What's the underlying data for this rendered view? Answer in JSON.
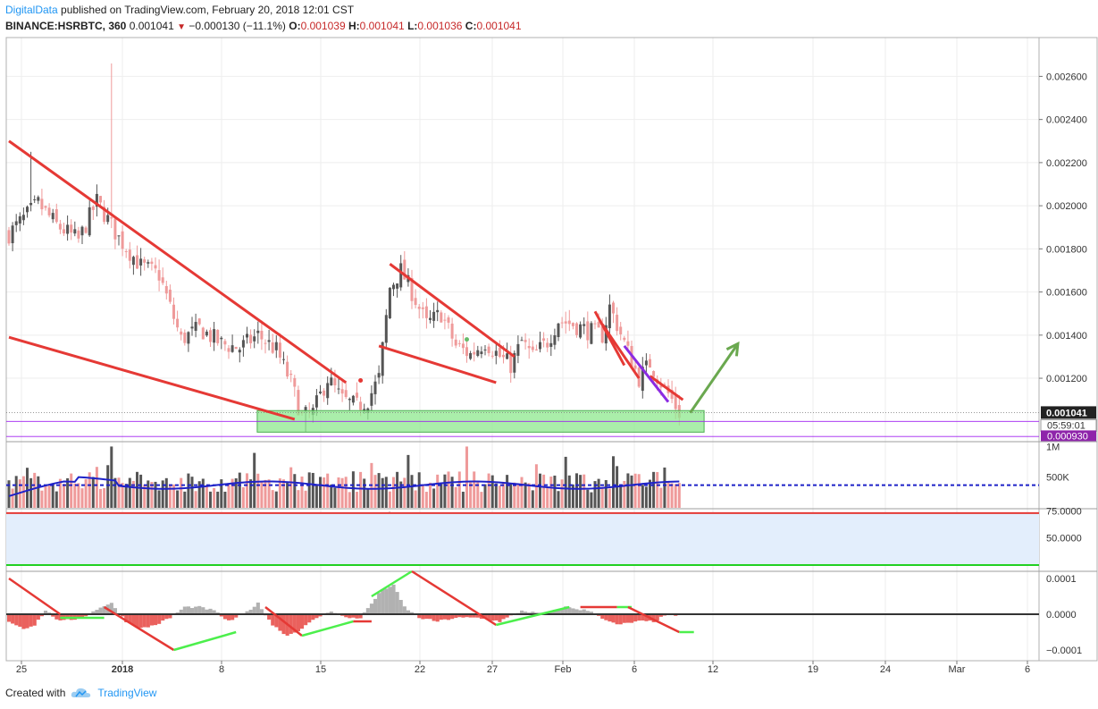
{
  "header": {
    "brand": "DigitalData",
    "published": "published on TradingView.com, February 20, 2018 12:01 CST",
    "symbol": "BINANCE:HSRBTC, 360",
    "last": "0.001041",
    "change": "−0.000130 (−11.1%)",
    "o_label": "O:",
    "o_value": "0.001039",
    "h_label": "H:",
    "h_value": "0.001041",
    "l_label": "L:",
    "l_value": "0.001036",
    "c_label": "C:",
    "c_value": "0.001041"
  },
  "footer": {
    "created_with": "Created with",
    "brand": "TradingView"
  },
  "colors": {
    "up": "#555555",
    "down": "#ef9a9a",
    "trend": "#e53935",
    "support_fill": "#8ee88e",
    "rsi": "#333333",
    "rsi_ma": "#9c27b0",
    "vol_ma": "#1e22c8",
    "arrow": "#6aa84f",
    "purple_line": "#8b2be2"
  },
  "chart_data": [
    {
      "type": "candlestick",
      "x_ticks": [
        "25",
        "2018",
        "8",
        "15",
        "22",
        "27",
        "Feb",
        "6",
        "12",
        "19",
        "24",
        "Mar",
        "6"
      ],
      "y_ticks": [
        "0.002600",
        "0.002400",
        "0.002200",
        "0.002000",
        "0.001800",
        "0.001600",
        "0.001400",
        "0.001200"
      ],
      "ylim": [
        0.00091,
        0.00278
      ],
      "last_price_label": "0.001041",
      "timer_label": "05:59:01",
      "low_label": "0.000930",
      "anchors": [
        [
          0,
          0.00187
        ],
        [
          8,
          0.00201
        ],
        [
          13,
          0.00191
        ],
        [
          19,
          0.00184
        ],
        [
          24,
          0.00202
        ],
        [
          30,
          0.00185
        ],
        [
          36,
          0.00172
        ],
        [
          41,
          0.00168
        ],
        [
          47,
          0.00138
        ],
        [
          52,
          0.00143
        ],
        [
          58,
          0.00136
        ],
        [
          63,
          0.00134
        ],
        [
          68,
          0.0014
        ],
        [
          73,
          0.00133
        ],
        [
          77,
          0.00118
        ],
        [
          80,
          0.00102
        ],
        [
          83,
          0.00104
        ],
        [
          87,
          0.0012
        ],
        [
          91,
          0.0011
        ],
        [
          95,
          0.00107
        ],
        [
          98,
          0.0011
        ],
        [
          101,
          0.0012
        ],
        [
          104,
          0.00162
        ],
        [
          107,
          0.0017
        ],
        [
          110,
          0.0016
        ],
        [
          114,
          0.00145
        ],
        [
          118,
          0.0015
        ],
        [
          122,
          0.00135
        ],
        [
          126,
          0.00131
        ],
        [
          130,
          0.00137
        ],
        [
          134,
          0.0013
        ],
        [
          137,
          0.00126
        ],
        [
          140,
          0.00137
        ],
        [
          143,
          0.0013
        ],
        [
          147,
          0.00137
        ],
        [
          150,
          0.00147
        ],
        [
          154,
          0.00145
        ],
        [
          158,
          0.00142
        ],
        [
          162,
          0.0014
        ],
        [
          164,
          0.00153
        ],
        [
          166,
          0.00145
        ],
        [
          169,
          0.00132
        ],
        [
          172,
          0.0012
        ],
        [
          175,
          0.00127
        ],
        [
          178,
          0.00118
        ],
        [
          181,
          0.0011
        ],
        [
          183,
          0.00104
        ]
      ],
      "trendlines": [
        {
          "from": [
            0,
            0.0023
          ],
          "to": [
            92,
            0.00118
          ]
        },
        {
          "from": [
            0,
            0.00139
          ],
          "to": [
            78,
            0.00101
          ]
        },
        {
          "from": [
            104,
            0.00173
          ],
          "to": [
            138,
            0.0013
          ]
        },
        {
          "from": [
            101,
            0.00135
          ],
          "to": [
            133,
            0.00118
          ]
        },
        {
          "from": [
            160,
            0.00151
          ],
          "to": [
            168,
            0.00126
          ]
        },
        {
          "from": [
            162,
            0.00145
          ],
          "to": [
            172,
            0.0012
          ]
        },
        {
          "from": [
            175,
            0.00121
          ],
          "to": [
            184,
            0.0011
          ]
        }
      ],
      "purple_trendline": {
        "from": [
          168,
          0.00135
        ],
        "to": [
          180,
          0.00109
        ]
      },
      "support_zone": {
        "x": [
          69,
          191
        ],
        "y": [
          0.00095,
          0.00105
        ]
      },
      "arrow": {
        "from": [
          186,
          0.00104
        ],
        "to": [
          199,
          0.00136
        ]
      },
      "h_lines": [
        0.001,
        0.00093
      ]
    },
    {
      "type": "bar",
      "series": "volume",
      "y_ticks": [
        "1M",
        "500K"
      ],
      "ylim": [
        0,
        1050000
      ],
      "ma_level": 370000
    },
    {
      "type": "line",
      "series": "RSI",
      "y_ticks": [
        "75.0000",
        "50.0000"
      ],
      "ylim": [
        20,
        77
      ],
      "upper": 73,
      "lower": 25,
      "anchors": [
        [
          0,
          62
        ],
        [
          6,
          58
        ],
        [
          12,
          54
        ],
        [
          20,
          53
        ],
        [
          26,
          58
        ],
        [
          31,
          50
        ],
        [
          36,
          38
        ],
        [
          41,
          32
        ],
        [
          47,
          35
        ],
        [
          52,
          36
        ],
        [
          58,
          40
        ],
        [
          63,
          42
        ],
        [
          68,
          48
        ],
        [
          72,
          38
        ],
        [
          77,
          28
        ],
        [
          82,
          32
        ],
        [
          88,
          42
        ],
        [
          94,
          46
        ],
        [
          98,
          52
        ],
        [
          101,
          60
        ],
        [
          104,
          75
        ],
        [
          107,
          68
        ],
        [
          111,
          62
        ],
        [
          117,
          55
        ],
        [
          123,
          52
        ],
        [
          129,
          50
        ],
        [
          135,
          47
        ],
        [
          141,
          46
        ],
        [
          147,
          44
        ],
        [
          153,
          52
        ],
        [
          158,
          58
        ],
        [
          162,
          55
        ],
        [
          166,
          42
        ],
        [
          172,
          34
        ],
        [
          178,
          30
        ],
        [
          182,
          28
        ]
      ]
    },
    {
      "type": "area",
      "series": "oscillator",
      "y_ticks": [
        "0.0001",
        "0.0000",
        "−0.0001"
      ],
      "ylim": [
        -0.00013,
        0.00012
      ],
      "anchors": [
        [
          0,
          -2e-05
        ],
        [
          4,
          -4e-05
        ],
        [
          7,
          -3e-05
        ],
        [
          10,
          1e-05
        ],
        [
          14,
          -2e-05
        ],
        [
          20,
          -1e-05
        ],
        [
          25,
          2e-05
        ],
        [
          28,
          3e-05
        ],
        [
          32,
          -2e-05
        ],
        [
          36,
          -4e-05
        ],
        [
          40,
          -3e-05
        ],
        [
          44,
          -1e-05
        ],
        [
          48,
          2e-05
        ],
        [
          52,
          2e-05
        ],
        [
          56,
          1e-05
        ],
        [
          60,
          -2e-05
        ],
        [
          64,
          0.0
        ],
        [
          68,
          3e-05
        ],
        [
          72,
          -3e-05
        ],
        [
          76,
          -6e-05
        ],
        [
          80,
          -4e-05
        ],
        [
          84,
          -1e-05
        ],
        [
          88,
          1e-05
        ],
        [
          92,
          -1e-05
        ],
        [
          96,
          -1e-05
        ],
        [
          99,
          3e-05
        ],
        [
          102,
          7e-05
        ],
        [
          105,
          8e-05
        ],
        [
          108,
          2e-05
        ],
        [
          112,
          -1e-05
        ],
        [
          117,
          -2e-05
        ],
        [
          122,
          -1e-05
        ],
        [
          128,
          -1e-05
        ],
        [
          134,
          -2e-05
        ],
        [
          140,
          1e-05
        ],
        [
          146,
          0.0
        ],
        [
          152,
          2e-05
        ],
        [
          158,
          1e-05
        ],
        [
          162,
          -1e-05
        ],
        [
          166,
          -3e-05
        ],
        [
          172,
          -2e-05
        ],
        [
          176,
          -2e-05
        ],
        [
          180,
          0.0
        ],
        [
          183,
          -1e-05
        ]
      ],
      "divergence_lines": [
        {
          "from": [
            0,
            0.0001
          ],
          "to": [
            14,
            0.0
          ],
          "color": "red"
        },
        {
          "from": [
            14,
            -1e-05
          ],
          "to": [
            26,
            -1e-05
          ],
          "color": "green"
        },
        {
          "from": [
            26,
            2e-05
          ],
          "to": [
            45,
            -0.0001
          ],
          "color": "red"
        },
        {
          "from": [
            45,
            -0.0001
          ],
          "to": [
            62,
            -5e-05
          ],
          "color": "green"
        },
        {
          "from": [
            70,
            2e-05
          ],
          "to": [
            80,
            -6e-05
          ],
          "color": "red"
        },
        {
          "from": [
            80,
            -6e-05
          ],
          "to": [
            94,
            -2e-05
          ],
          "color": "green"
        },
        {
          "from": [
            94,
            -2e-05
          ],
          "to": [
            99,
            -2e-05
          ],
          "color": "red"
        },
        {
          "from": [
            99,
            5e-05
          ],
          "to": [
            110,
            0.00012
          ],
          "color": "green"
        },
        {
          "from": [
            110,
            0.00012
          ],
          "to": [
            133,
            -3e-05
          ],
          "color": "red"
        },
        {
          "from": [
            133,
            -3e-05
          ],
          "to": [
            153,
            2e-05
          ],
          "color": "green"
        },
        {
          "from": [
            156,
            2e-05
          ],
          "to": [
            166,
            2e-05
          ],
          "color": "red"
        },
        {
          "from": [
            166,
            2e-05
          ],
          "to": [
            170,
            2e-05
          ],
          "color": "green"
        },
        {
          "from": [
            169,
            2e-05
          ],
          "to": [
            183,
            -5e-05
          ],
          "color": "red"
        },
        {
          "from": [
            183,
            -5e-05
          ],
          "to": [
            187,
            -5e-05
          ],
          "color": "green"
        }
      ]
    }
  ]
}
